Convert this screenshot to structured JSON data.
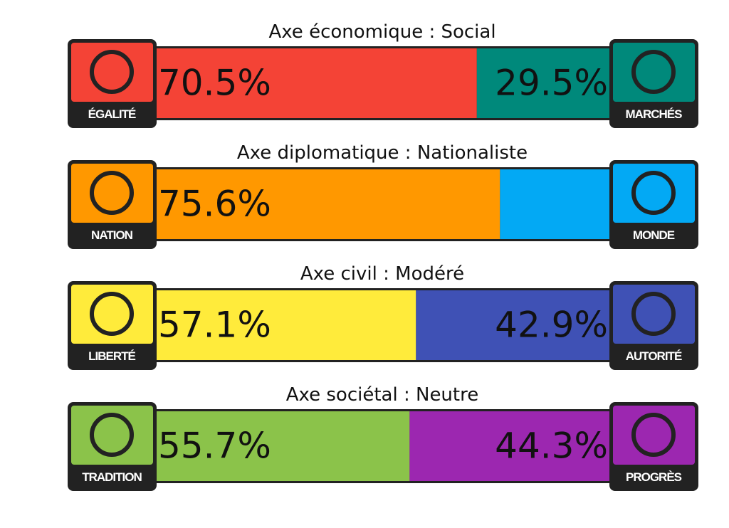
{
  "axes": [
    {
      "title": "Axe économique : Social",
      "left": {
        "name": "ÉGALITÉ",
        "value": 70.5,
        "value_label": "70.5%",
        "color": "#f44336"
      },
      "right": {
        "name": "MARCHÉS",
        "value": 29.5,
        "value_label": "29.5%",
        "color": "#00897b"
      }
    },
    {
      "title": "Axe diplomatique : Nationaliste",
      "left": {
        "name": "NATION",
        "value": 75.6,
        "value_label": "75.6%",
        "color": "#ff9800"
      },
      "right": {
        "name": "MONDE",
        "value": 24.4,
        "color": "#03a9f4"
      }
    },
    {
      "title": "Axe civil : Modéré",
      "left": {
        "name": "LIBERTÉ",
        "value": 57.1,
        "value_label": "57.1%",
        "color": "#ffeb3b"
      },
      "right": {
        "name": "AUTORITÉ",
        "value": 42.9,
        "value_label": "42.9%",
        "color": "#3f51b5"
      }
    },
    {
      "title": "Axe sociétal : Neutre",
      "left": {
        "name": "TRADITION",
        "value": 55.7,
        "value_label": "55.7%",
        "color": "#8bc34a"
      },
      "right": {
        "name": "PROGRÈS",
        "value": 44.3,
        "value_label": "44.3%",
        "color": "#9c27b0"
      }
    }
  ]
}
